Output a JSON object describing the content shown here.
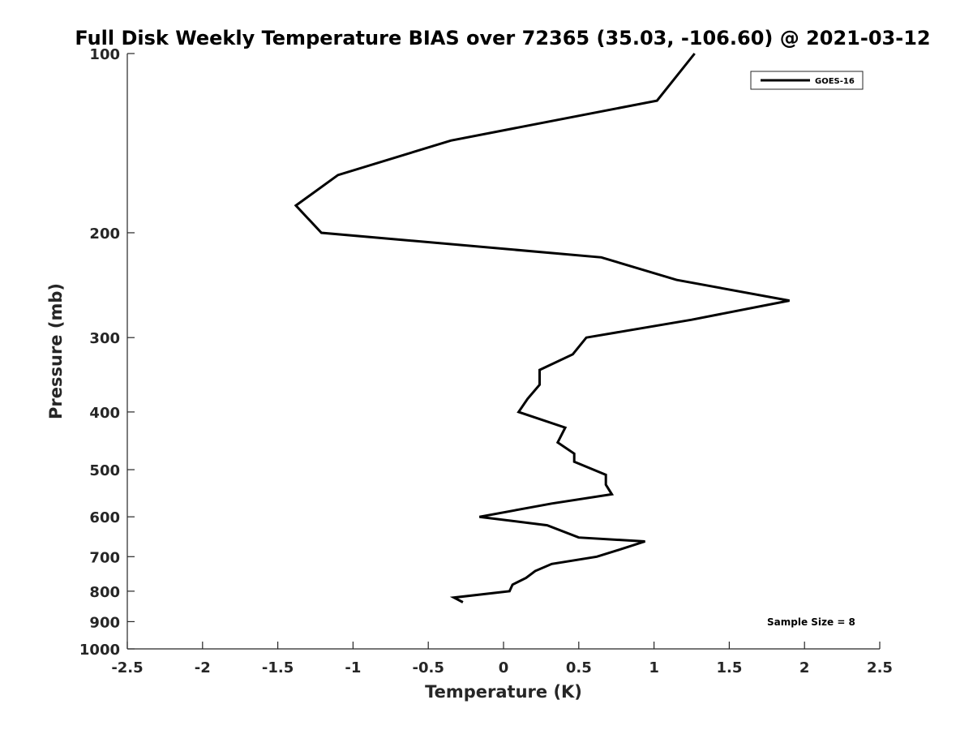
{
  "chart_data": {
    "type": "line",
    "title": "Full Disk Weekly Temperature BIAS over 72365 (35.03, -106.60) @ 2021-03-12",
    "xlabel": "Temperature (K)",
    "ylabel": "Pressure (mb)",
    "xlim": [
      -2.5,
      2.5
    ],
    "ylim": [
      1000,
      100
    ],
    "yscale": "log",
    "x_ticks": [
      -2.5,
      -2,
      -1.5,
      -1,
      -0.5,
      0,
      0.5,
      1,
      1.5,
      2,
      2.5
    ],
    "x_tick_labels": [
      "-2.5",
      "-2",
      "-1.5",
      "-1",
      "-0.5",
      "0",
      "0.5",
      "1",
      "1.5",
      "2",
      "2.5"
    ],
    "y_ticks": [
      100,
      200,
      300,
      400,
      500,
      600,
      700,
      800,
      900,
      1000
    ],
    "y_tick_labels": [
      "100",
      "200",
      "300",
      "400",
      "500",
      "600",
      "700",
      "800",
      "900",
      "1000"
    ],
    "grid": false,
    "legend_position": "top-right",
    "annotation": "Sample Size = 8",
    "series": [
      {
        "name": "GOES-16",
        "color": "#000000",
        "points": [
          {
            "x": 1.27,
            "p": 100
          },
          {
            "x": 1.02,
            "p": 120
          },
          {
            "x": -0.35,
            "p": 140
          },
          {
            "x": -1.1,
            "p": 160
          },
          {
            "x": -1.38,
            "p": 180
          },
          {
            "x": -1.21,
            "p": 200
          },
          {
            "x": 0.65,
            "p": 220
          },
          {
            "x": 1.15,
            "p": 240
          },
          {
            "x": 1.9,
            "p": 260
          },
          {
            "x": 1.25,
            "p": 280
          },
          {
            "x": 0.55,
            "p": 300
          },
          {
            "x": 0.46,
            "p": 320
          },
          {
            "x": 0.24,
            "p": 340
          },
          {
            "x": 0.24,
            "p": 360
          },
          {
            "x": 0.16,
            "p": 380
          },
          {
            "x": 0.1,
            "p": 400
          },
          {
            "x": 0.41,
            "p": 425
          },
          {
            "x": 0.36,
            "p": 450
          },
          {
            "x": 0.47,
            "p": 470
          },
          {
            "x": 0.47,
            "p": 485
          },
          {
            "x": 0.68,
            "p": 510
          },
          {
            "x": 0.68,
            "p": 530
          },
          {
            "x": 0.72,
            "p": 550
          },
          {
            "x": 0.32,
            "p": 570
          },
          {
            "x": -0.16,
            "p": 600
          },
          {
            "x": 0.29,
            "p": 620
          },
          {
            "x": 0.5,
            "p": 650
          },
          {
            "x": 0.94,
            "p": 660
          },
          {
            "x": 0.78,
            "p": 680
          },
          {
            "x": 0.62,
            "p": 700
          },
          {
            "x": 0.32,
            "p": 720
          },
          {
            "x": 0.21,
            "p": 740
          },
          {
            "x": 0.15,
            "p": 760
          },
          {
            "x": 0.06,
            "p": 780
          },
          {
            "x": 0.04,
            "p": 800
          },
          {
            "x": -0.33,
            "p": 820
          },
          {
            "x": -0.27,
            "p": 835
          }
        ]
      }
    ]
  }
}
